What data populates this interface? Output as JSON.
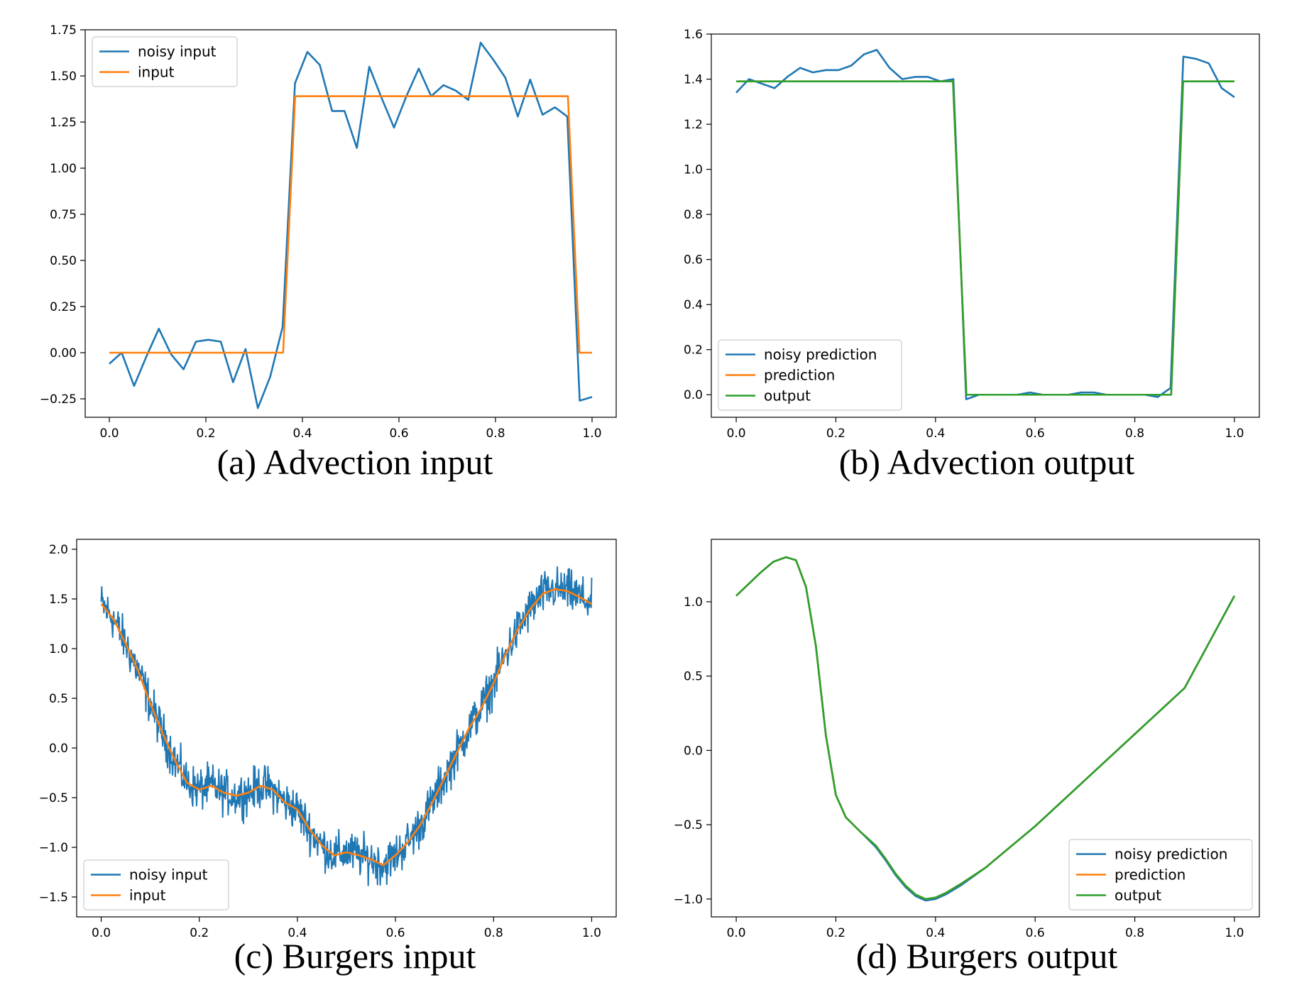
{
  "captions": {
    "a": "(a) Advection input",
    "b": "(b) Advection output",
    "c": "(c) Burgers input",
    "d": "(d) Burgers output"
  },
  "colors": {
    "blue": "#1f77b4",
    "orange": "#ff7f0e",
    "green": "#2ca02c"
  },
  "chart_data": [
    {
      "id": "a",
      "type": "line",
      "title": "",
      "xlabel": "",
      "ylabel": "",
      "xlim": [
        -0.05,
        1.05
      ],
      "ylim": [
        -0.35,
        1.75
      ],
      "xticks": [
        0.0,
        0.2,
        0.4,
        0.6,
        0.8,
        1.0
      ],
      "xtick_labels": [
        "0.0",
        "0.2",
        "0.4",
        "0.6",
        "0.8",
        "1.0"
      ],
      "yticks": [
        -0.25,
        0.0,
        0.25,
        0.5,
        0.75,
        1.0,
        1.25,
        1.5,
        1.75
      ],
      "ytick_labels": [
        "−0.25",
        "0.00",
        "0.25",
        "0.50",
        "0.75",
        "1.00",
        "1.25",
        "1.50",
        "1.75"
      ],
      "legend": {
        "position": "top-left",
        "entries": [
          "noisy input",
          "input"
        ]
      },
      "grid": false,
      "series": [
        {
          "name": "noisy input",
          "color": "blue",
          "x": [
            0.0,
            0.0256,
            0.0513,
            0.0769,
            0.1026,
            0.1282,
            0.1538,
            0.1795,
            0.2051,
            0.2308,
            0.2564,
            0.2821,
            0.3077,
            0.3333,
            0.359,
            0.3846,
            0.4103,
            0.4359,
            0.4615,
            0.4872,
            0.5128,
            0.5385,
            0.5641,
            0.5897,
            0.6154,
            0.641,
            0.6667,
            0.6923,
            0.7179,
            0.7436,
            0.7692,
            0.7949,
            0.8205,
            0.8462,
            0.8718,
            0.8974,
            0.9231,
            0.9487,
            0.9744,
            1.0
          ],
          "y": [
            -0.06,
            0.0,
            -0.18,
            -0.02,
            0.13,
            -0.01,
            -0.09,
            0.06,
            0.07,
            0.06,
            -0.16,
            0.02,
            -0.3,
            -0.13,
            0.14,
            1.46,
            1.63,
            1.56,
            1.31,
            1.31,
            1.11,
            1.55,
            1.38,
            1.22,
            1.39,
            1.54,
            1.39,
            1.45,
            1.42,
            1.37,
            1.68,
            1.59,
            1.49,
            1.28,
            1.48,
            1.29,
            1.33,
            1.28,
            -0.26,
            -0.24
          ]
        },
        {
          "name": "input",
          "color": "orange",
          "x": [
            0.0,
            0.36,
            0.385,
            0.95,
            0.974,
            1.0
          ],
          "y": [
            0.0,
            0.0,
            1.39,
            1.39,
            0.0,
            0.0
          ]
        }
      ]
    },
    {
      "id": "b",
      "type": "line",
      "title": "",
      "xlabel": "",
      "ylabel": "",
      "xlim": [
        -0.05,
        1.05
      ],
      "ylim": [
        -0.1,
        1.6
      ],
      "xticks": [
        0.0,
        0.2,
        0.4,
        0.6,
        0.8,
        1.0
      ],
      "xtick_labels": [
        "0.0",
        "0.2",
        "0.4",
        "0.6",
        "0.8",
        "1.0"
      ],
      "yticks": [
        0.0,
        0.2,
        0.4,
        0.6,
        0.8,
        1.0,
        1.2,
        1.4,
        1.6
      ],
      "ytick_labels": [
        "0.0",
        "0.2",
        "0.4",
        "0.6",
        "0.8",
        "1.0",
        "1.2",
        "1.4",
        "1.6"
      ],
      "legend": {
        "position": "lower-left",
        "entries": [
          "noisy prediction",
          "prediction",
          "output"
        ]
      },
      "grid": false,
      "series": [
        {
          "name": "noisy prediction",
          "color": "blue",
          "x": [
            0.0,
            0.0256,
            0.0513,
            0.0769,
            0.1026,
            0.1282,
            0.1538,
            0.1795,
            0.2051,
            0.2308,
            0.2564,
            0.2821,
            0.3077,
            0.3333,
            0.359,
            0.3846,
            0.4103,
            0.4359,
            0.4615,
            0.4872,
            0.5128,
            0.5385,
            0.5641,
            0.5897,
            0.6154,
            0.641,
            0.6667,
            0.6923,
            0.7179,
            0.7436,
            0.7692,
            0.7949,
            0.8205,
            0.8462,
            0.8718,
            0.8974,
            0.9231,
            0.9487,
            0.9744,
            1.0
          ],
          "y": [
            1.34,
            1.4,
            1.38,
            1.36,
            1.41,
            1.45,
            1.43,
            1.44,
            1.44,
            1.46,
            1.51,
            1.53,
            1.45,
            1.4,
            1.41,
            1.41,
            1.39,
            1.4,
            -0.02,
            0.0,
            0.0,
            0.0,
            0.0,
            0.01,
            0.0,
            0.0,
            0.0,
            0.01,
            0.01,
            0.0,
            0.0,
            0.0,
            0.0,
            -0.01,
            0.03,
            1.5,
            1.49,
            1.47,
            1.36,
            1.32
          ]
        },
        {
          "name": "prediction",
          "color": "orange",
          "x": [
            0.0,
            0.435,
            0.462,
            0.873,
            0.897,
            1.0
          ],
          "y": [
            1.39,
            1.39,
            0.0,
            0.0,
            1.39,
            1.39
          ]
        },
        {
          "name": "output",
          "color": "green",
          "x": [
            0.0,
            0.435,
            0.462,
            0.873,
            0.897,
            1.0
          ],
          "y": [
            1.39,
            1.39,
            0.0,
            0.0,
            1.39,
            1.39
          ]
        }
      ]
    },
    {
      "id": "c",
      "type": "line",
      "title": "",
      "xlabel": "",
      "ylabel": "",
      "xlim": [
        -0.05,
        1.05
      ],
      "ylim": [
        -1.7,
        2.1
      ],
      "xticks": [
        0.0,
        0.2,
        0.4,
        0.6,
        0.8,
        1.0
      ],
      "xtick_labels": [
        "0.0",
        "0.2",
        "0.4",
        "0.6",
        "0.8",
        "1.0"
      ],
      "yticks": [
        -1.5,
        -1.0,
        -0.5,
        0.0,
        0.5,
        1.0,
        1.5,
        2.0
      ],
      "ytick_labels": [
        "−1.5",
        "−1.0",
        "−0.5",
        "0.0",
        "0.5",
        "1.0",
        "1.5",
        "2.0"
      ],
      "legend": {
        "position": "lower-left",
        "entries": [
          "noisy input",
          "input"
        ]
      },
      "grid": false,
      "noise_amplitude": 0.15,
      "series": [
        {
          "name": "noisy input",
          "color": "blue",
          "derived_from": "input"
        },
        {
          "name": "input",
          "color": "orange",
          "x": [
            0.0,
            0.025,
            0.05,
            0.075,
            0.1,
            0.125,
            0.15,
            0.175,
            0.2,
            0.225,
            0.25,
            0.275,
            0.3,
            0.325,
            0.35,
            0.375,
            0.4,
            0.425,
            0.45,
            0.475,
            0.5,
            0.525,
            0.55,
            0.575,
            0.6,
            0.625,
            0.65,
            0.675,
            0.7,
            0.725,
            0.75,
            0.775,
            0.8,
            0.825,
            0.85,
            0.875,
            0.9,
            0.925,
            0.95,
            0.975,
            1.0
          ],
          "y": [
            1.45,
            1.3,
            1.05,
            0.78,
            0.45,
            0.15,
            -0.12,
            -0.35,
            -0.42,
            -0.38,
            -0.45,
            -0.48,
            -0.45,
            -0.38,
            -0.42,
            -0.55,
            -0.62,
            -0.82,
            -0.98,
            -1.08,
            -1.05,
            -1.08,
            -1.12,
            -1.18,
            -1.08,
            -0.95,
            -0.78,
            -0.55,
            -0.3,
            -0.05,
            0.2,
            0.4,
            0.65,
            0.95,
            1.2,
            1.4,
            1.55,
            1.6,
            1.58,
            1.52,
            1.45
          ]
        }
      ]
    },
    {
      "id": "d",
      "type": "line",
      "title": "",
      "xlabel": "",
      "ylabel": "",
      "xlim": [
        -0.05,
        1.05
      ],
      "ylim": [
        -1.12,
        1.42
      ],
      "xticks": [
        0.0,
        0.2,
        0.4,
        0.6,
        0.8,
        1.0
      ],
      "xtick_labels": [
        "0.0",
        "0.2",
        "0.4",
        "0.6",
        "0.8",
        "1.0"
      ],
      "yticks": [
        -1.0,
        -0.5,
        0.0,
        0.5,
        1.0
      ],
      "ytick_labels": [
        "−1.0",
        "−0.5",
        "0.0",
        "0.5",
        "1.0"
      ],
      "legend": {
        "position": "lower-right",
        "entries": [
          "noisy prediction",
          "prediction",
          "output"
        ]
      },
      "grid": false,
      "series": [
        {
          "name": "noisy prediction",
          "color": "blue",
          "x": [
            0.0,
            0.025,
            0.05,
            0.075,
            0.1,
            0.12,
            0.14,
            0.16,
            0.18,
            0.2,
            0.22,
            0.25,
            0.28,
            0.3,
            0.32,
            0.34,
            0.36,
            0.38,
            0.4,
            0.42,
            0.45,
            0.5,
            0.6,
            0.7,
            0.8,
            0.9,
            1.0
          ],
          "y": [
            1.04,
            1.12,
            1.2,
            1.27,
            1.3,
            1.28,
            1.1,
            0.7,
            0.1,
            -0.3,
            -0.45,
            -0.55,
            -0.65,
            -0.74,
            -0.84,
            -0.92,
            -0.98,
            -1.01,
            -1.0,
            -0.97,
            -0.91,
            -0.79,
            -0.51,
            -0.2,
            0.11,
            0.42,
            1.04
          ]
        },
        {
          "name": "prediction",
          "color": "orange",
          "x": [
            0.0,
            0.025,
            0.05,
            0.075,
            0.1,
            0.12,
            0.14,
            0.16,
            0.18,
            0.2,
            0.22,
            0.25,
            0.28,
            0.3,
            0.32,
            0.34,
            0.36,
            0.38,
            0.4,
            0.42,
            0.45,
            0.5,
            0.6,
            0.7,
            0.8,
            0.9,
            1.0
          ],
          "y": [
            1.04,
            1.12,
            1.2,
            1.27,
            1.3,
            1.28,
            1.1,
            0.7,
            0.1,
            -0.3,
            -0.45,
            -0.55,
            -0.64,
            -0.73,
            -0.83,
            -0.91,
            -0.97,
            -1.0,
            -0.99,
            -0.96,
            -0.9,
            -0.79,
            -0.51,
            -0.2,
            0.11,
            0.42,
            1.04
          ]
        },
        {
          "name": "output",
          "color": "green",
          "x": [
            0.0,
            0.025,
            0.05,
            0.075,
            0.1,
            0.12,
            0.14,
            0.16,
            0.18,
            0.2,
            0.22,
            0.25,
            0.28,
            0.3,
            0.32,
            0.34,
            0.36,
            0.38,
            0.4,
            0.42,
            0.45,
            0.5,
            0.6,
            0.7,
            0.8,
            0.9,
            1.0
          ],
          "y": [
            1.04,
            1.12,
            1.2,
            1.27,
            1.3,
            1.28,
            1.1,
            0.7,
            0.1,
            -0.3,
            -0.45,
            -0.55,
            -0.64,
            -0.73,
            -0.83,
            -0.91,
            -0.97,
            -1.0,
            -0.99,
            -0.96,
            -0.9,
            -0.79,
            -0.51,
            -0.2,
            0.11,
            0.42,
            1.04
          ]
        }
      ]
    }
  ]
}
